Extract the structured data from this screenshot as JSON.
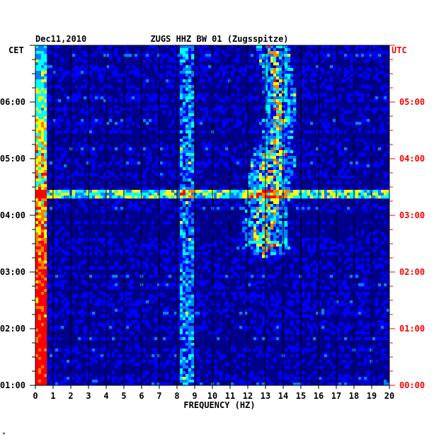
{
  "chart_data": {
    "type": "heatmap",
    "date": "Dec11,2010",
    "title": "ZUGS HHZ BW 01 (Zugsspitze)",
    "xlabel": "FREQUENCY (HZ)",
    "xlim": [
      0,
      20
    ],
    "x_ticks": [
      "0",
      "1",
      "2",
      "3",
      "4",
      "5",
      "6",
      "7",
      "8",
      "9",
      "10",
      "11",
      "12",
      "13",
      "14",
      "15",
      "16",
      "17",
      "18",
      "19",
      "20"
    ],
    "left_axis_label": "CET",
    "right_axis_label": "UTC",
    "left_ticks": [
      "06:00",
      "05:00",
      "04:00",
      "03:00",
      "02:00",
      "01:00"
    ],
    "right_ticks": [
      "05:00",
      "04:00",
      "03:00",
      "02:00",
      "01:00",
      "00:00"
    ],
    "time_range_cet": [
      "01:00",
      "07:00"
    ],
    "colormap": [
      "#00008b",
      "#0000ff",
      "#0080ff",
      "#00ffff",
      "#ffff00",
      "#ff8000",
      "#ff0000"
    ],
    "features": [
      {
        "name": "low-frequency band",
        "freq_hz": [
          0.1,
          0.5
        ],
        "level": "high"
      },
      {
        "name": "8.5 Hz band",
        "freq_hz": [
          8.2,
          8.8
        ],
        "level": "medium"
      },
      {
        "name": "13-14 Hz tremor band",
        "freq_hz": [
          12.8,
          14.2
        ],
        "level": "very high"
      },
      {
        "name": "broadband event",
        "time_cet": "04:20",
        "level": "high"
      }
    ]
  },
  "colors": {
    "background": "#ffffff",
    "left_axis": "#000000",
    "right_axis": "#ff0000",
    "grid": "#000000"
  },
  "footer_mark": "*"
}
